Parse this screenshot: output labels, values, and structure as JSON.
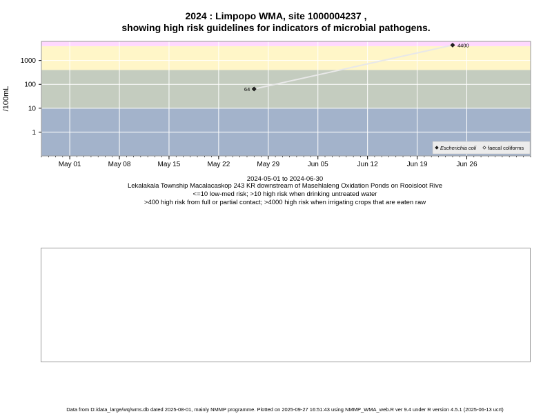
{
  "title": {
    "line1": "2024 : Limpopo WMA, site 1000004237 ,",
    "line2": "showing high risk guidelines for indicators of microbial pathogens."
  },
  "chart_data": {
    "type": "scatter",
    "y_scale": "log",
    "ylabel": "/100mL",
    "xlim": [
      "2024-04-27",
      "2024-07-05"
    ],
    "ylim": [
      0.1,
      6300
    ],
    "y_ticks": [
      1,
      10,
      100,
      1000
    ],
    "y_tick_labels": [
      "1",
      "10",
      "100",
      "1000"
    ],
    "x_ticks": [
      "2024-05-01",
      "2024-05-08",
      "2024-05-15",
      "2024-05-22",
      "2024-05-29",
      "2024-06-05",
      "2024-06-12",
      "2024-06-19",
      "2024-06-26"
    ],
    "x_tick_labels": [
      "May 01",
      "May 08",
      "May 15",
      "May 22",
      "May 29",
      "Jun 05",
      "Jun 12",
      "Jun 19",
      "Jun 26"
    ],
    "risk_bands": [
      {
        "from": 0.1,
        "to": 10,
        "color": "#a3b3cb"
      },
      {
        "from": 10,
        "to": 400,
        "color": "#c4ccbf"
      },
      {
        "from": 400,
        "to": 4000,
        "color": "#fff6c8"
      },
      {
        "from": 4000,
        "to": 6300,
        "color": "#ffd8ff"
      }
    ],
    "grid": true,
    "series": [
      {
        "name": "Escherichia coli",
        "marker": "filled-diamond",
        "points": [
          {
            "x": "2024-05-27",
            "y": 64,
            "label": "64"
          },
          {
            "x": "2024-06-24",
            "y": 4400,
            "label": "4400"
          }
        ]
      }
    ],
    "legend": {
      "position": "bottom-right",
      "entries": [
        {
          "label": "Escherichia coli",
          "marker": "filled-diamond",
          "italic": true
        },
        {
          "label": "faecal coliforms",
          "marker": "open-diamond",
          "italic": false
        }
      ]
    }
  },
  "caption": {
    "date_range": "2024-05-01 to 2024-06-30",
    "site_description": "Lekalakala Township Macalacaskop 243 KR downstream of Masehlaleng Oxidation Ponds on Rooisloot Rive",
    "guideline1": "<=10 low-med risk; >10 high risk when drinking untreated water",
    "guideline2": ">400 high risk from full or partial contact; >4000 high risk when irrigating crops that are eaten raw"
  },
  "footer": "Data from D:/data_large/wq/wms.db dated 2025-08-01, mainly NMMP programme. Plotted on 2025-09-27 16:51:43 using NMMP_WMA_web.R ver 9.4 under R version 4.5.1 (2025-06-13 ucrt)"
}
